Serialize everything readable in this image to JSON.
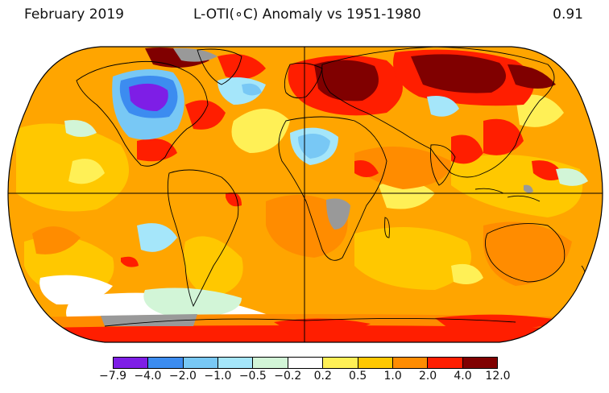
{
  "header": {
    "date_label": "February 2019",
    "title": "L-OTI(∘C) Anomaly vs 1951-1980",
    "global_mean": "0.91"
  },
  "legend": {
    "tick_labels": [
      "−7.9",
      "−4.0",
      "−2.0",
      "−1.0",
      "−0.5",
      "−0.2",
      "0.2",
      "0.5",
      "1.0",
      "2.0",
      "4.0",
      "12.0"
    ],
    "bin_colors": [
      "#7e1ee6",
      "#3c8cf0",
      "#78c8f5",
      "#a5e6fa",
      "#d2f5d7",
      "#ffffff",
      "#fff056",
      "#ffc800",
      "#ff8c00",
      "#ff1e00",
      "#800000"
    ]
  },
  "map": {
    "projection": "Robinson",
    "missing_data_color": "#999999",
    "background_color": "#ffa500"
  }
}
